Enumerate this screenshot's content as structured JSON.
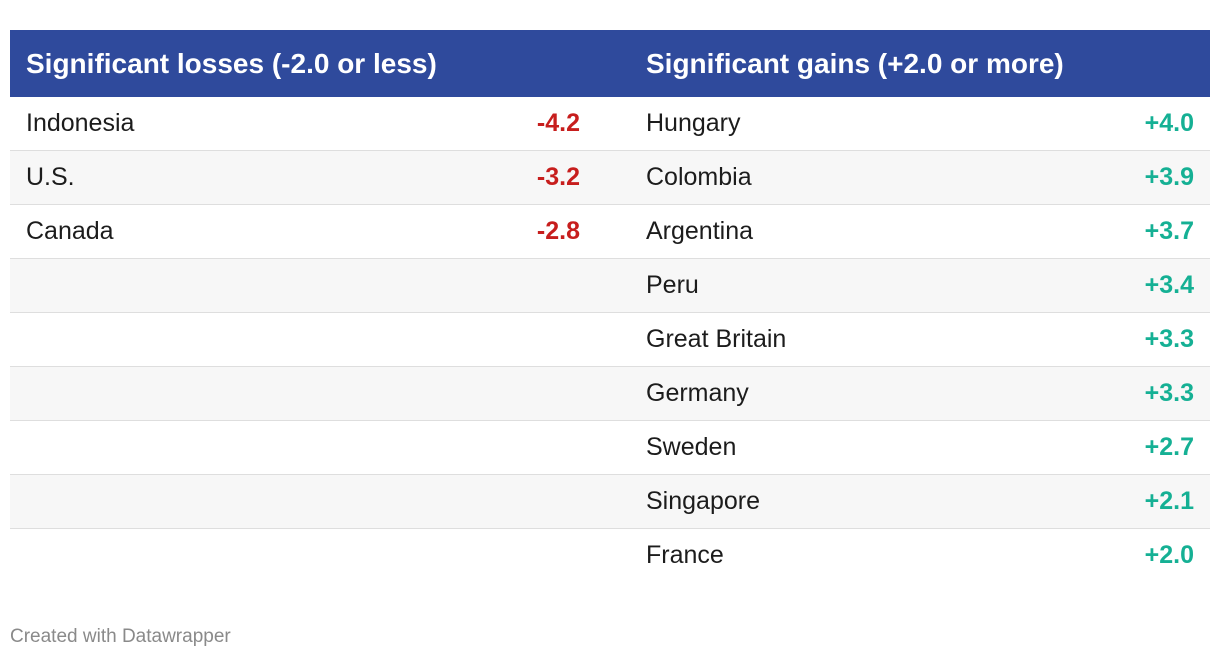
{
  "chart_data": {
    "type": "table",
    "columns": [
      {
        "header": "Significant losses (-2.0 or less)",
        "color": "#c71e1d",
        "rows": [
          {
            "label": "Indonesia",
            "value": "-4.2"
          },
          {
            "label": "U.S.",
            "value": "-3.2"
          },
          {
            "label": "Canada",
            "value": "-2.8"
          }
        ]
      },
      {
        "header": "Significant gains (+2.0 or more)",
        "color": "#15b094",
        "rows": [
          {
            "label": "Hungary",
            "value": "+4.0"
          },
          {
            "label": "Colombia",
            "value": "+3.9"
          },
          {
            "label": "Argentina",
            "value": "+3.7"
          },
          {
            "label": "Peru",
            "value": "+3.4"
          },
          {
            "label": "Great Britain",
            "value": "+3.3"
          },
          {
            "label": "Germany",
            "value": "+3.3"
          },
          {
            "label": "Sweden",
            "value": "+2.7"
          },
          {
            "label": "Singapore",
            "value": "+2.1"
          },
          {
            "label": "France",
            "value": "+2.0"
          }
        ]
      }
    ]
  },
  "colors": {
    "header_bg": "#2f4a9c",
    "header_text": "#ffffff",
    "row_alt_bg": "#f7f7f7"
  },
  "footer": {
    "credit": "Created with Datawrapper"
  }
}
